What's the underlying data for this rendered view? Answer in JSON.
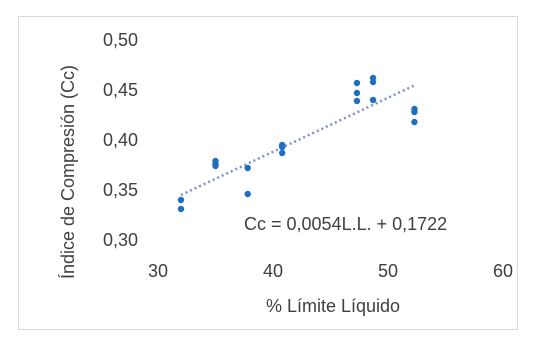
{
  "chart_data": {
    "type": "scatter",
    "title": "",
    "xlabel": "% Límite Líquido",
    "ylabel": "Índice de Compresión (Cc)",
    "xlim": [
      30,
      60
    ],
    "ylim": [
      0.3,
      0.5
    ],
    "x_ticks": [
      "30",
      "40",
      "50",
      "60"
    ],
    "y_ticks": [
      "0,30",
      "0,35",
      "0,40",
      "0,45",
      "0,50"
    ],
    "grid": false,
    "series": [
      {
        "color": "#1f6fc0",
        "points": [
          [
            32.0,
            0.34
          ],
          [
            32.0,
            0.331
          ],
          [
            35.0,
            0.379
          ],
          [
            35.0,
            0.376
          ],
          [
            35.0,
            0.374
          ],
          [
            37.8,
            0.372
          ],
          [
            37.8,
            0.346
          ],
          [
            40.8,
            0.395
          ],
          [
            40.8,
            0.393
          ],
          [
            40.8,
            0.387
          ],
          [
            47.3,
            0.457
          ],
          [
            47.3,
            0.447
          ],
          [
            47.3,
            0.439
          ],
          [
            48.7,
            0.462
          ],
          [
            48.7,
            0.458
          ],
          [
            48.7,
            0.44
          ],
          [
            52.3,
            0.431
          ],
          [
            52.3,
            0.428
          ],
          [
            52.3,
            0.418
          ]
        ]
      }
    ],
    "trendline": {
      "slope": 0.0054,
      "intercept": 0.1722,
      "x_range": [
        32.0,
        52.3
      ],
      "style": "dotted",
      "color": "#7f8ec9",
      "equation_label": "Cc = 0,0054L.L. + 0,1722"
    }
  }
}
